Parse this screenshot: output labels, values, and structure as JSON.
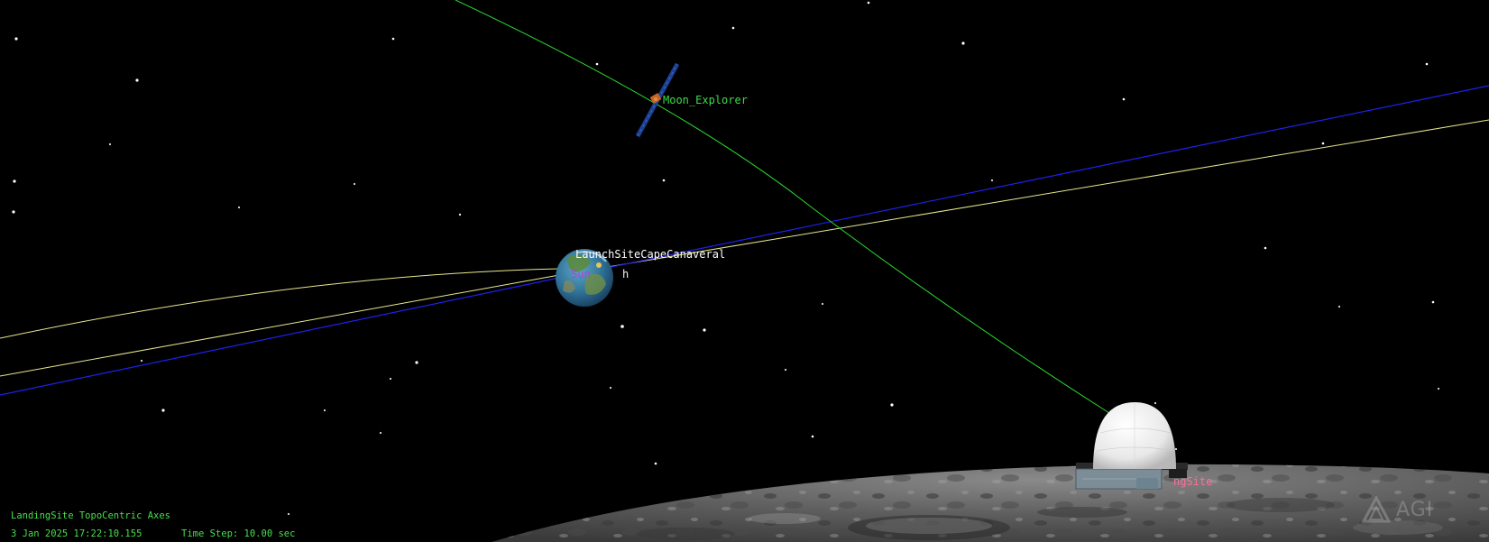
{
  "viewer": {
    "background_color": "#000000"
  },
  "objects": {
    "satellite": {
      "label": "Moon_Explorer",
      "label_color": "#3ddc4a",
      "icon": "satellite-icon"
    },
    "launch_site": {
      "label": "LaunchSiteCapeCanaveral",
      "label_color": "#ffffff"
    },
    "sun_label": {
      "label": "Sun",
      "label_color": "#b040e0"
    },
    "earth_label_fragment": {
      "label": "h",
      "label_color": "#f0f0f0"
    },
    "landing_site": {
      "label": "ngSite",
      "label_color": "#ff6f9a",
      "icon": "radome-icon"
    },
    "earth": {
      "icon": "earth-globe-icon"
    },
    "moon_surface": {
      "icon": "moon-surface"
    }
  },
  "orbits": {
    "satellite_track_color": "#2bd82b",
    "blue_track_color": "#1a1aff",
    "yellow_track_color": "#e8e890"
  },
  "hud": {
    "axes_label": "LandingSite TopoCentric Axes",
    "datetime": "3 Jan 2025 17:22:10.155",
    "time_step": "Time Step: 10.00 sec",
    "text_color": "#46e04a"
  },
  "branding": {
    "logo_text": "AGI",
    "logo_icon": "agi-triangle-logo-icon"
  }
}
